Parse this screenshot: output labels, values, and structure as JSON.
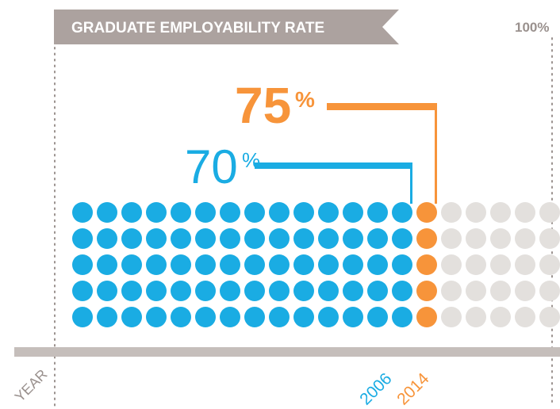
{
  "title": "GRADUATE EMPLOYABILITY RATE",
  "max_label": "100%",
  "year_label": "YEAR",
  "colors": {
    "blue": "#1aace3",
    "orange": "#f7943a",
    "gray_dot": "#e3e0dd",
    "banner": "#aca29f",
    "axis": "#c5bebb",
    "max_text": "#9a918e"
  },
  "chart_data": {
    "type": "dot-matrix",
    "rows": 5,
    "total_columns": 20,
    "ylim": [
      0,
      100
    ],
    "series": [
      {
        "year": "2006",
        "value": 70,
        "value_text": "70",
        "color": "#1aace3"
      },
      {
        "year": "2014",
        "value": 75,
        "value_text": "75",
        "color": "#f7943a"
      }
    ],
    "percent_sign": "%"
  }
}
